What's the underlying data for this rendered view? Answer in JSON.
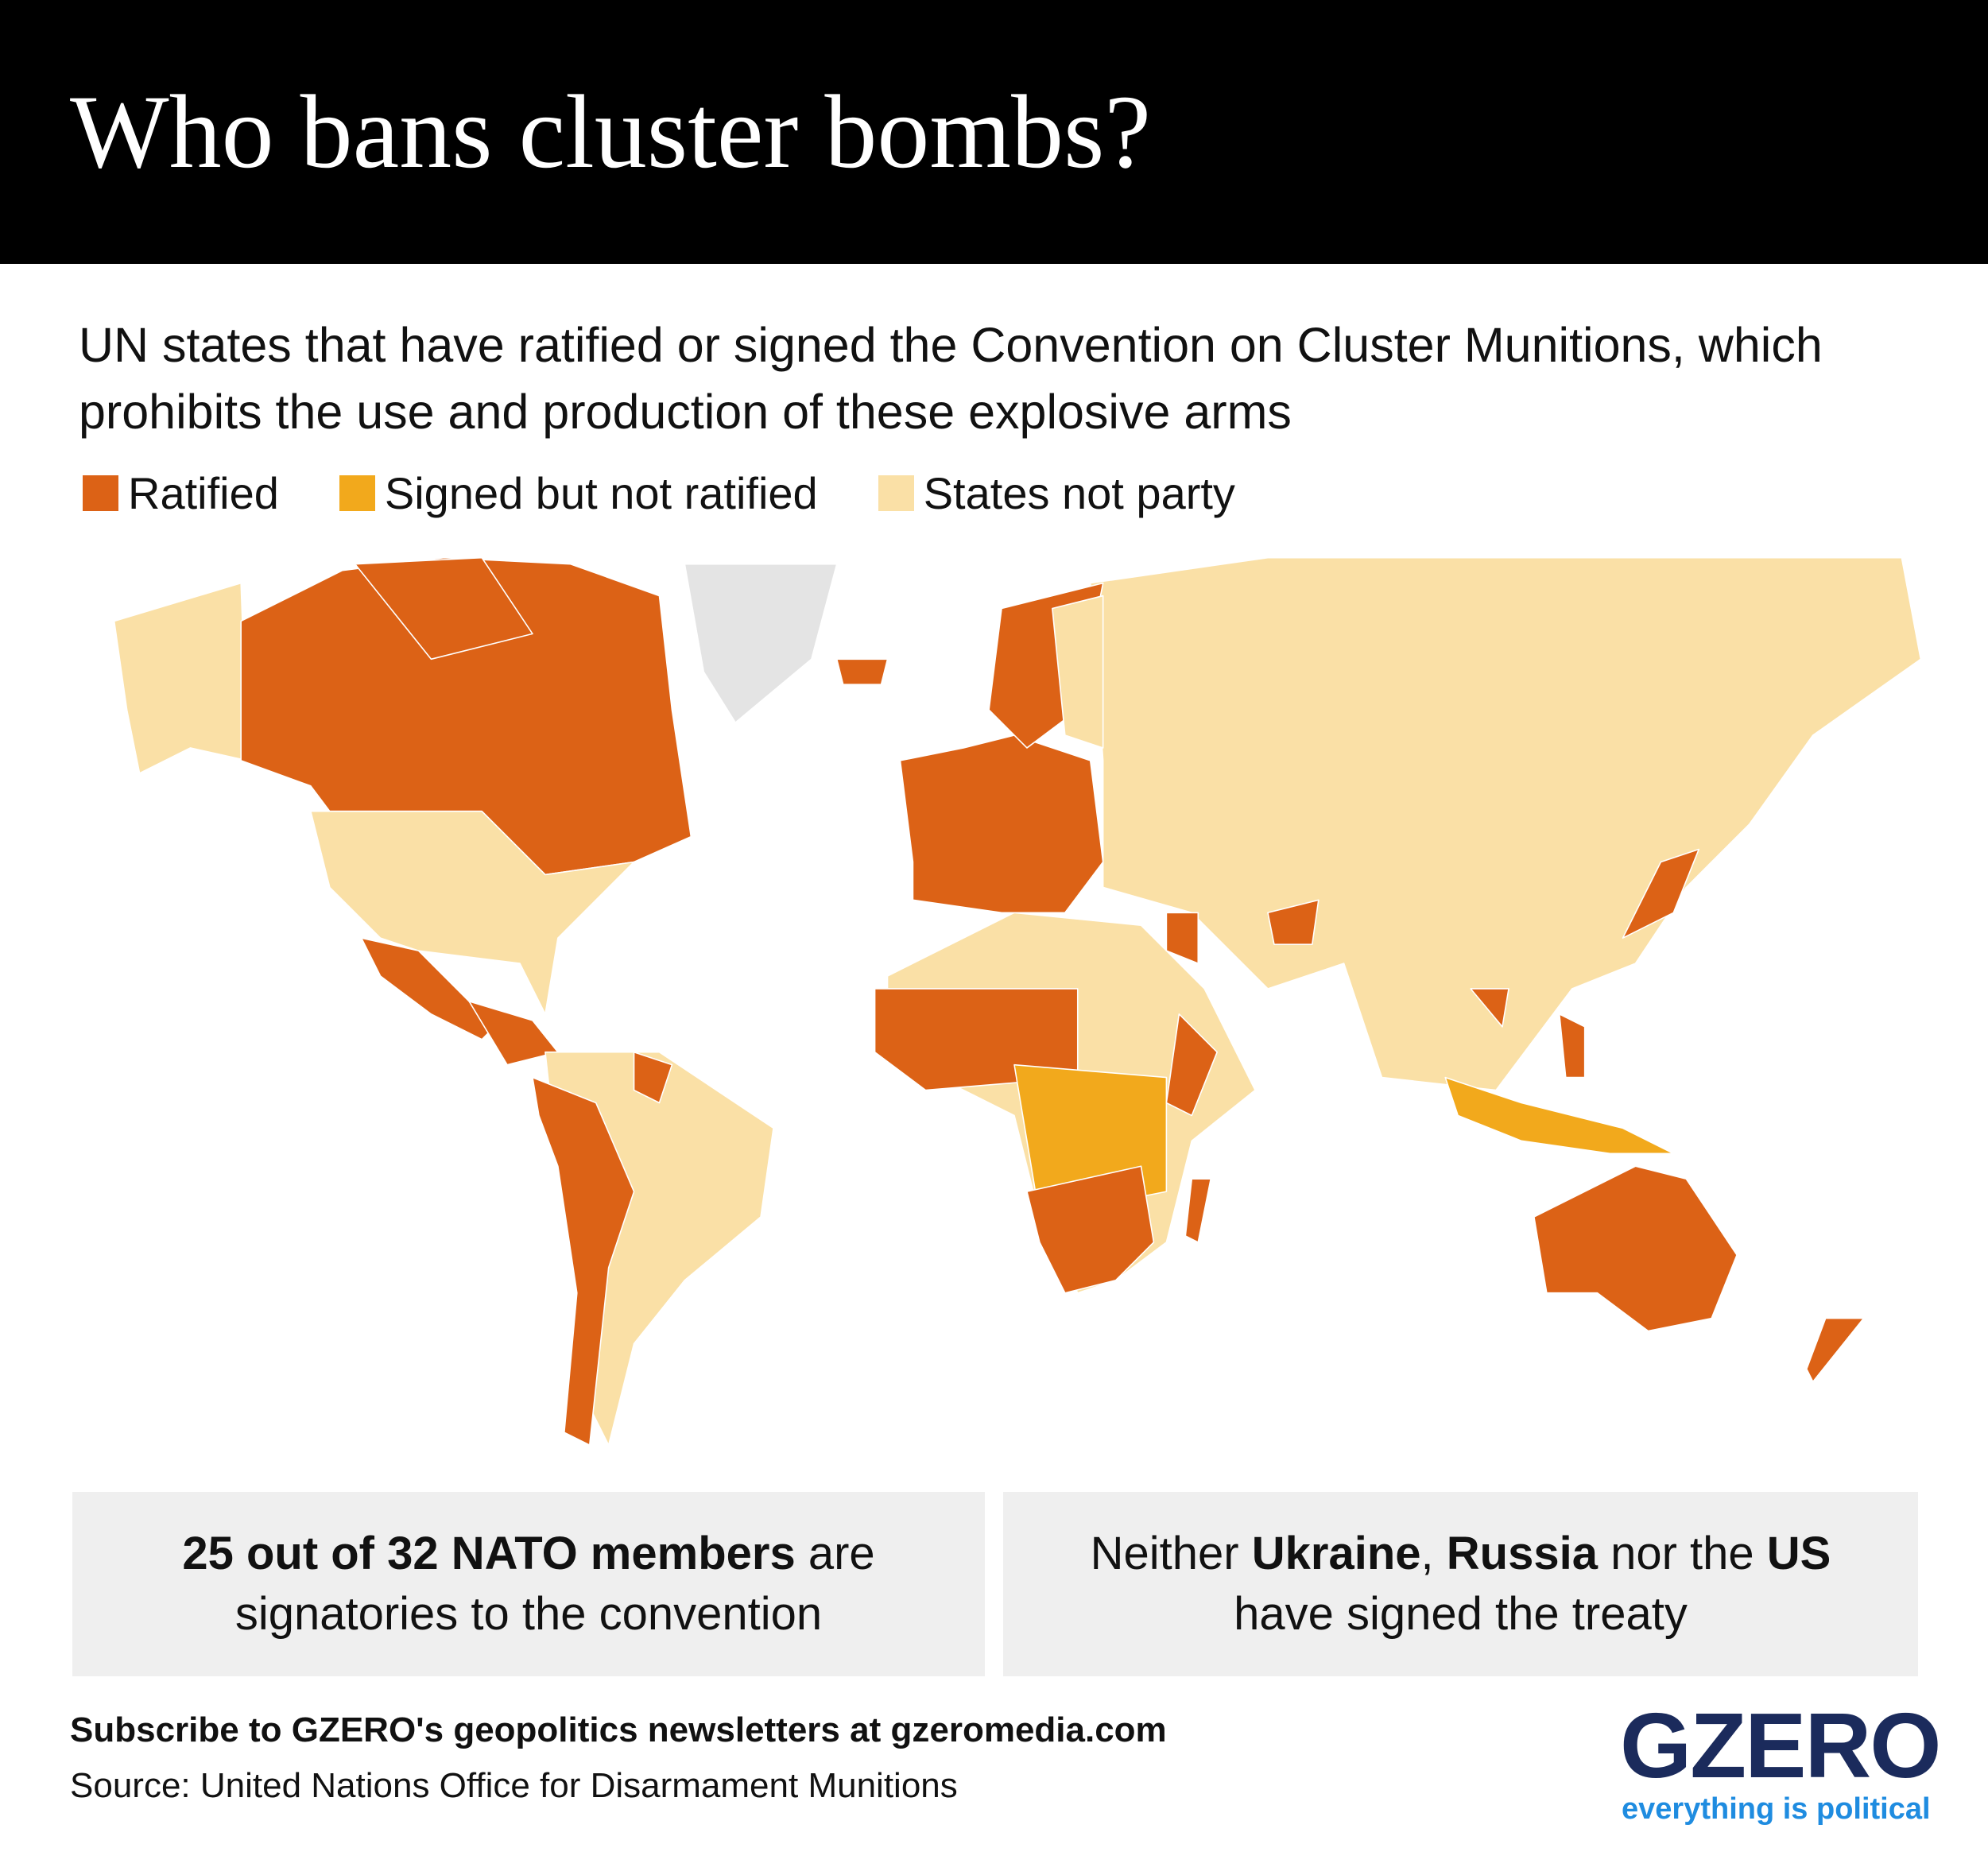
{
  "header": {
    "title": "Who bans cluster bombs?"
  },
  "subtitle": "UN states that have ratified or signed the Convention on Cluster Munitions, which prohibits the use and production of these explosive arms",
  "legend": [
    {
      "name": "Ratified",
      "color": "#dc6216"
    },
    {
      "name": "Signed but not ratified",
      "color": "#f2a91c"
    },
    {
      "name": "States not party",
      "color": "#fae0a6"
    }
  ],
  "callouts": [
    {
      "parts": [
        {
          "text": "25 out of 32 NATO members",
          "bold": true
        },
        {
          "text": " are signatories to the convention",
          "bold": false
        }
      ]
    },
    {
      "parts": [
        {
          "text": "Neither ",
          "bold": false
        },
        {
          "text": "Ukraine",
          "bold": true
        },
        {
          "text": ", ",
          "bold": false
        },
        {
          "text": "Russia",
          "bold": true
        },
        {
          "text": " nor the ",
          "bold": false
        },
        {
          "text": "US",
          "bold": true
        },
        {
          "text": " have signed the treaty",
          "bold": false
        }
      ]
    }
  ],
  "footer": {
    "subscribe": "Subscribe to GZERO's geopolitics newsletters at gzeromedia.com",
    "source": "Source: United Nations Office for Disarmament Munitions",
    "logo": "GZERO",
    "tagline": "everything is political"
  }
}
